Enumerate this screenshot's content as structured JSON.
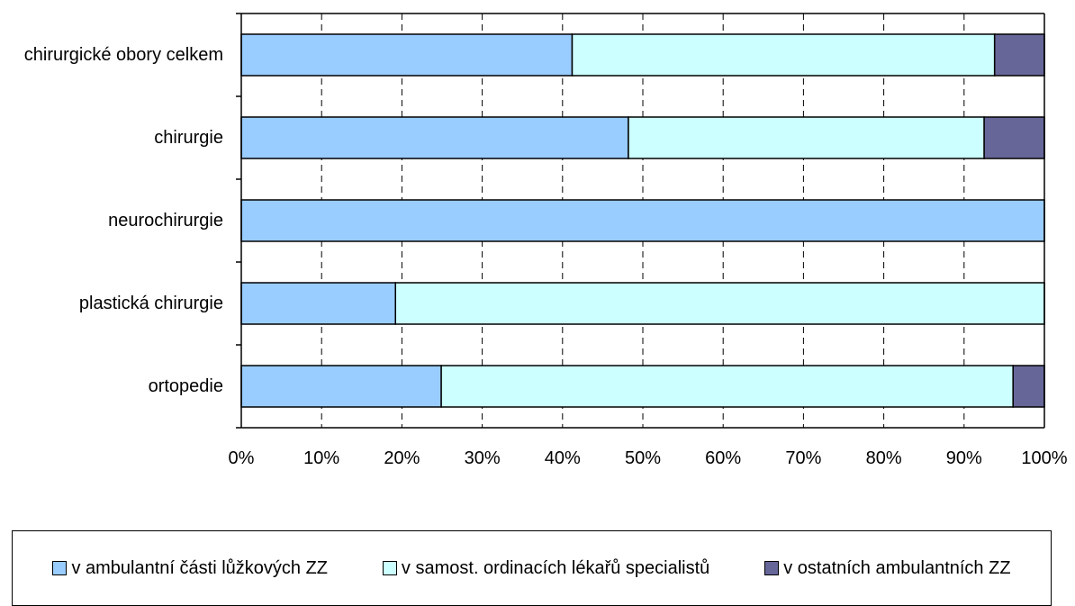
{
  "chart_data": {
    "type": "bar",
    "orientation": "horizontal",
    "stacked": "percent",
    "categories": [
      "chirurgické obory celkem",
      "chirurgie",
      "neurochirurgie",
      "plastická chirurgie",
      "ortopedie"
    ],
    "series": [
      {
        "name": "v ambulantní části lůžkových ZZ",
        "color": "#99ccff",
        "values": [
          41.2,
          48.2,
          100,
          19.2,
          24.9
        ]
      },
      {
        "name": "v samost. ordinacích lékařů specialistů",
        "color": "#ccffff",
        "values": [
          52.6,
          44.3,
          0,
          80.8,
          71.2
        ]
      },
      {
        "name": "v ostatních ambulantních ZZ",
        "color": "#666699",
        "values": [
          6.2,
          7.5,
          0,
          0,
          3.9
        ]
      }
    ],
    "xticks": [
      "0%",
      "10%",
      "20%",
      "30%",
      "40%",
      "50%",
      "60%",
      "70%",
      "80%",
      "90%",
      "100%"
    ],
    "xlim": [
      0,
      100
    ],
    "grid": "vertical dashed",
    "legend_position": "bottom"
  }
}
